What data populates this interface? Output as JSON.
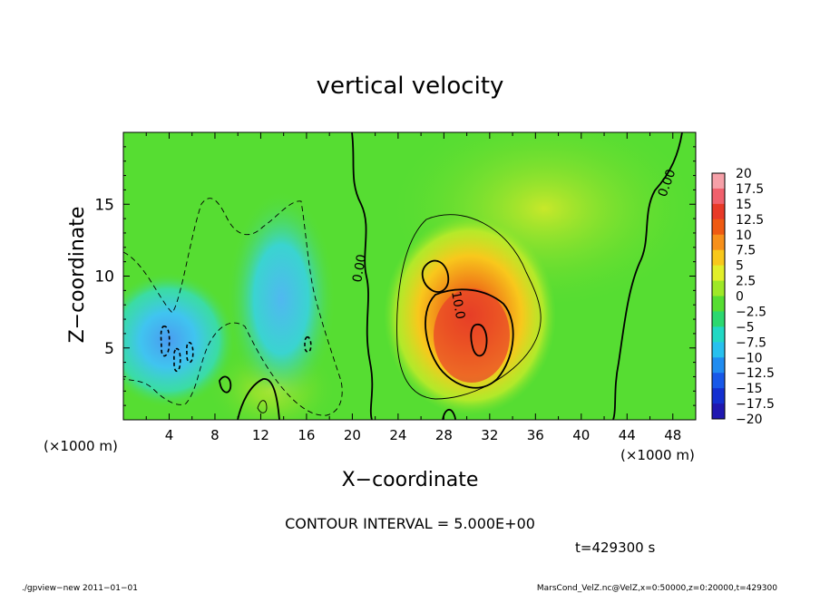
{
  "chart_data": {
    "type": "heatmap",
    "title": "vertical velocity",
    "xlabel": "X−coordinate",
    "ylabel": "Z−coordinate",
    "x_unit_left": "(×1000 m)",
    "x_unit_right": "(×1000 m)",
    "x_ticks": [
      4,
      8,
      12,
      16,
      20,
      24,
      28,
      32,
      36,
      40,
      44,
      48
    ],
    "y_ticks": [
      5,
      10,
      15
    ],
    "xlim": [
      0,
      50
    ],
    "ylim": [
      0,
      20
    ],
    "contour_interval_text": "CONTOUR INTERVAL = 5.000E+00",
    "time_text": "t=429300 s",
    "contour_labels": [
      {
        "text": "0.00",
        "x": 20,
        "y": 10.5
      },
      {
        "text": "0.00",
        "x": 46.5,
        "y": 16.8
      },
      {
        "text": "10.0",
        "x": 29.2,
        "y": 7.6
      }
    ],
    "features": [
      {
        "kind": "updraft_max",
        "value_approx": 15,
        "x": 30.5,
        "y": 5.8
      },
      {
        "kind": "downdraft_min",
        "value_approx": -12,
        "x": 5,
        "y": 5
      },
      {
        "kind": "downdraft",
        "value_approx": -7,
        "x": 13,
        "y": 8
      }
    ],
    "colorbar": {
      "labels": [
        "20",
        "17.5",
        "15",
        "12.5",
        "10",
        "7.5",
        "5",
        "2.5",
        "0",
        "−2.5",
        "−5",
        "−7.5",
        "−10",
        "−12.5",
        "−15",
        "−17.5",
        "−20"
      ],
      "colors": [
        "#f6a0a8",
        "#f0606c",
        "#e83a28",
        "#ef5a12",
        "#f7901a",
        "#f8c81c",
        "#e2ef2a",
        "#9ee828",
        "#56dd32",
        "#2cd870",
        "#22d8c4",
        "#28c0ee",
        "#208cf0",
        "#1858e8",
        "#1430d0",
        "#2018b0",
        "#6a18b8"
      ]
    },
    "grid": false
  },
  "footer": {
    "left": "./gpview−new   2011−01−01",
    "right": "MarsCond_VelZ.nc@VelZ,x=0:50000,z=0:20000,t=429300"
  }
}
